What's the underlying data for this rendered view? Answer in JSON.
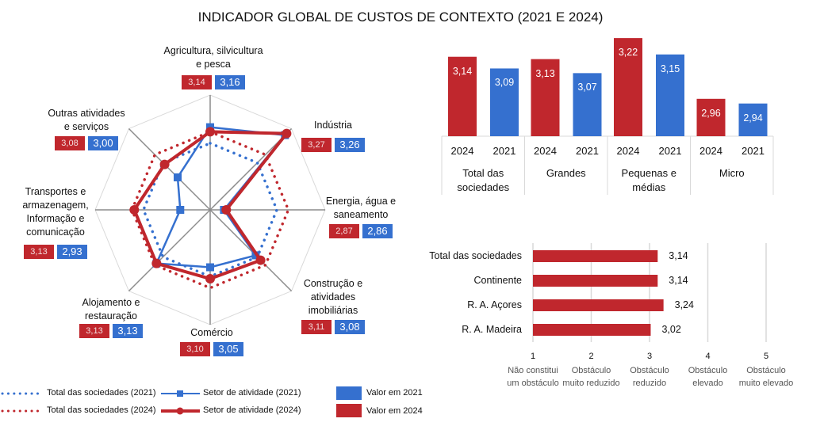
{
  "title": "INDICADOR GLOBAL DE CUSTOS DE CONTEXTO (2021 E 2024)",
  "colors": {
    "red_2024": "#C0272D",
    "blue_2021": "#3570CF",
    "grid": "#d9d9d9",
    "axis": "#8c8c8c"
  },
  "chart_data": [
    {
      "type": "radar",
      "range": [
        2.8,
        3.3
      ],
      "categories": [
        "Agricultura, silvicultura e pesca",
        "Indústria",
        "Energia, água e saneamento",
        "Construção e atividades imobiliárias",
        "Comércio",
        "Alojamento e restauração",
        "Transportes e armazenagem, Informação e comunicação",
        "Outras atividades e serviços"
      ],
      "category_lines": [
        [
          "Agricultura, silvicultura",
          "e pesca"
        ],
        [
          "Indústria"
        ],
        [
          "Energia, água e",
          "saneamento"
        ],
        [
          "Construção e",
          "atividades",
          "imobiliárias"
        ],
        [
          "Comércio"
        ],
        [
          "Alojamento e",
          "restauração"
        ],
        [
          "Transportes e",
          "armazenagem,",
          "Informação e",
          "comunicação"
        ],
        [
          "Outras atividades",
          "e serviços"
        ]
      ],
      "series": [
        {
          "name": "Setor de atividade (2021)",
          "values": [
            3.16,
            3.26,
            2.86,
            3.08,
            3.05,
            3.13,
            2.93,
            3.0
          ],
          "labels": [
            "3,16",
            "3,26",
            "2,86",
            "3,08",
            "3,05",
            "3,13",
            "2,93",
            "3,00"
          ],
          "color": "#3570CF",
          "style": "line-square"
        },
        {
          "name": "Setor de atividade (2024)",
          "values": [
            3.14,
            3.27,
            2.87,
            3.11,
            3.1,
            3.13,
            3.13,
            3.08
          ],
          "labels": [
            "3,14",
            "3,27",
            "2,87",
            "3,11",
            "3,10",
            "3,13",
            "3,13",
            "3,08"
          ],
          "color": "#C0272D",
          "style": "line-circle"
        },
        {
          "name": "Total das sociedades (2021)",
          "value": 3.09,
          "color": "#3570CF",
          "style": "dotted"
        },
        {
          "name": "Total das sociedades (2024)",
          "value": 3.14,
          "color": "#C0272D",
          "style": "dotted"
        }
      ],
      "legend": [
        "Total das sociedades (2021)",
        "Total das sociedades (2024)",
        "Setor de atividade (2021)",
        "Setor de atividade (2024)",
        "Valor em 2021",
        "Valor em 2024"
      ],
      "legend_placement": "bottom"
    },
    {
      "type": "bar",
      "ylim": [
        2.8,
        3.23
      ],
      "groups": [
        {
          "label": [
            "Total das",
            "sociedades"
          ],
          "bars": [
            {
              "year": "2024",
              "value": 3.14,
              "label": "3,14"
            },
            {
              "year": "2021",
              "value": 3.09,
              "label": "3,09"
            }
          ]
        },
        {
          "label": [
            "Grandes"
          ],
          "bars": [
            {
              "year": "2024",
              "value": 3.13,
              "label": "3,13"
            },
            {
              "year": "2021",
              "value": 3.07,
              "label": "3,07"
            }
          ]
        },
        {
          "label": [
            "Pequenas e",
            "médias"
          ],
          "bars": [
            {
              "year": "2024",
              "value": 3.22,
              "label": "3,22"
            },
            {
              "year": "2021",
              "value": 3.15,
              "label": "3,15"
            }
          ]
        },
        {
          "label": [
            "Micro"
          ],
          "bars": [
            {
              "year": "2024",
              "value": 2.96,
              "label": "2,96"
            },
            {
              "year": "2021",
              "value": 2.94,
              "label": "2,94"
            }
          ]
        }
      ]
    },
    {
      "type": "bar",
      "orientation": "horizontal",
      "xlim": [
        1,
        5
      ],
      "grid": true,
      "categories": [
        "Total das sociedades",
        "Continente",
        "R. A. Açores",
        "R. A. Madeira"
      ],
      "values": [
        3.14,
        3.14,
        3.24,
        3.02
      ],
      "value_labels": [
        "3,14",
        "3,14",
        "3,24",
        "3,02"
      ],
      "color": "#C0272D",
      "ticks": [
        {
          "value": "1",
          "desc": [
            "Não constitui",
            "um obstáculo"
          ]
        },
        {
          "value": "2",
          "desc": [
            "Obstáculo",
            "muito reduzido"
          ]
        },
        {
          "value": "3",
          "desc": [
            "Obstáculo",
            "reduzido"
          ]
        },
        {
          "value": "4",
          "desc": [
            "Obstáculo",
            "elevado"
          ]
        },
        {
          "value": "5",
          "desc": [
            "Obstáculo",
            "muito elevado"
          ]
        }
      ]
    }
  ]
}
